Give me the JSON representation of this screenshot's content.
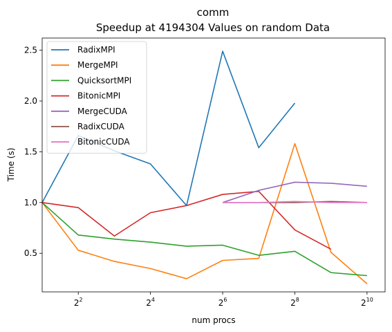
{
  "chart_data": {
    "type": "line",
    "title": "comm",
    "subtitle": "Speedup at 4194304 Values on random Data",
    "xlabel": "num procs",
    "ylabel": "Time (s)",
    "x_scale": "log2",
    "xlim": [
      2,
      1448
    ],
    "ylim": [
      0.12,
      2.62
    ],
    "x_ticks": [
      {
        "value": 4,
        "base": "2",
        "exp": "2"
      },
      {
        "value": 16,
        "base": "2",
        "exp": "4"
      },
      {
        "value": 64,
        "base": "2",
        "exp": "6"
      },
      {
        "value": 256,
        "base": "2",
        "exp": "8"
      },
      {
        "value": 1024,
        "base": "2",
        "exp": "10"
      }
    ],
    "y_ticks": [
      {
        "value": 0.5,
        "label": "0.5"
      },
      {
        "value": 1.0,
        "label": "1.0"
      },
      {
        "value": 1.5,
        "label": "1.5"
      },
      {
        "value": 2.0,
        "label": "2.0"
      },
      {
        "value": 2.5,
        "label": "2.5"
      }
    ],
    "legend_position": "top-left",
    "grid": false,
    "series": [
      {
        "name": "RadixMPI",
        "color": "#1f77b4",
        "points": [
          [
            2,
            1.0
          ],
          [
            4,
            1.66
          ],
          [
            8,
            1.51
          ],
          [
            16,
            1.38
          ],
          [
            32,
            0.97
          ],
          [
            64,
            2.49
          ],
          [
            128,
            1.54
          ],
          [
            256,
            1.98
          ]
        ]
      },
      {
        "name": "MergeMPI",
        "color": "#ff7f0e",
        "points": [
          [
            2,
            1.0
          ],
          [
            4,
            0.53
          ],
          [
            8,
            0.42
          ],
          [
            16,
            0.35
          ],
          [
            32,
            0.25
          ],
          [
            64,
            0.43
          ],
          [
            128,
            0.45
          ],
          [
            256,
            1.58
          ],
          [
            512,
            0.51
          ],
          [
            1024,
            0.2
          ]
        ]
      },
      {
        "name": "QuicksortMPI",
        "color": "#2ca02c",
        "points": [
          [
            2,
            1.0
          ],
          [
            4,
            0.68
          ],
          [
            8,
            0.64
          ],
          [
            16,
            0.61
          ],
          [
            32,
            0.57
          ],
          [
            64,
            0.58
          ],
          [
            128,
            0.48
          ],
          [
            256,
            0.52
          ],
          [
            512,
            0.31
          ],
          [
            1024,
            0.28
          ]
        ]
      },
      {
        "name": "BitonicMPI",
        "color": "#d62728",
        "points": [
          [
            2,
            1.0
          ],
          [
            4,
            0.95
          ],
          [
            8,
            0.67
          ],
          [
            16,
            0.9
          ],
          [
            32,
            0.97
          ],
          [
            64,
            1.08
          ],
          [
            128,
            1.11
          ],
          [
            256,
            0.73
          ],
          [
            512,
            0.54
          ]
        ]
      },
      {
        "name": "MergeCUDA",
        "color": "#9467bd",
        "points": [
          [
            64,
            1.0
          ],
          [
            128,
            1.12
          ],
          [
            256,
            1.2
          ],
          [
            512,
            1.19
          ],
          [
            1024,
            1.16
          ]
        ]
      },
      {
        "name": "RadixCUDA",
        "color": "#8c564b",
        "points": [
          [
            64,
            1.0
          ],
          [
            128,
            1.0
          ],
          [
            256,
            1.0
          ],
          [
            512,
            1.01
          ],
          [
            1024,
            1.0
          ]
        ]
      },
      {
        "name": "BitonicCUDA",
        "color": "#e377c2",
        "points": [
          [
            64,
            1.0
          ],
          [
            128,
            1.0
          ],
          [
            256,
            1.01
          ],
          [
            512,
            1.0
          ],
          [
            1024,
            1.0
          ]
        ]
      }
    ]
  }
}
